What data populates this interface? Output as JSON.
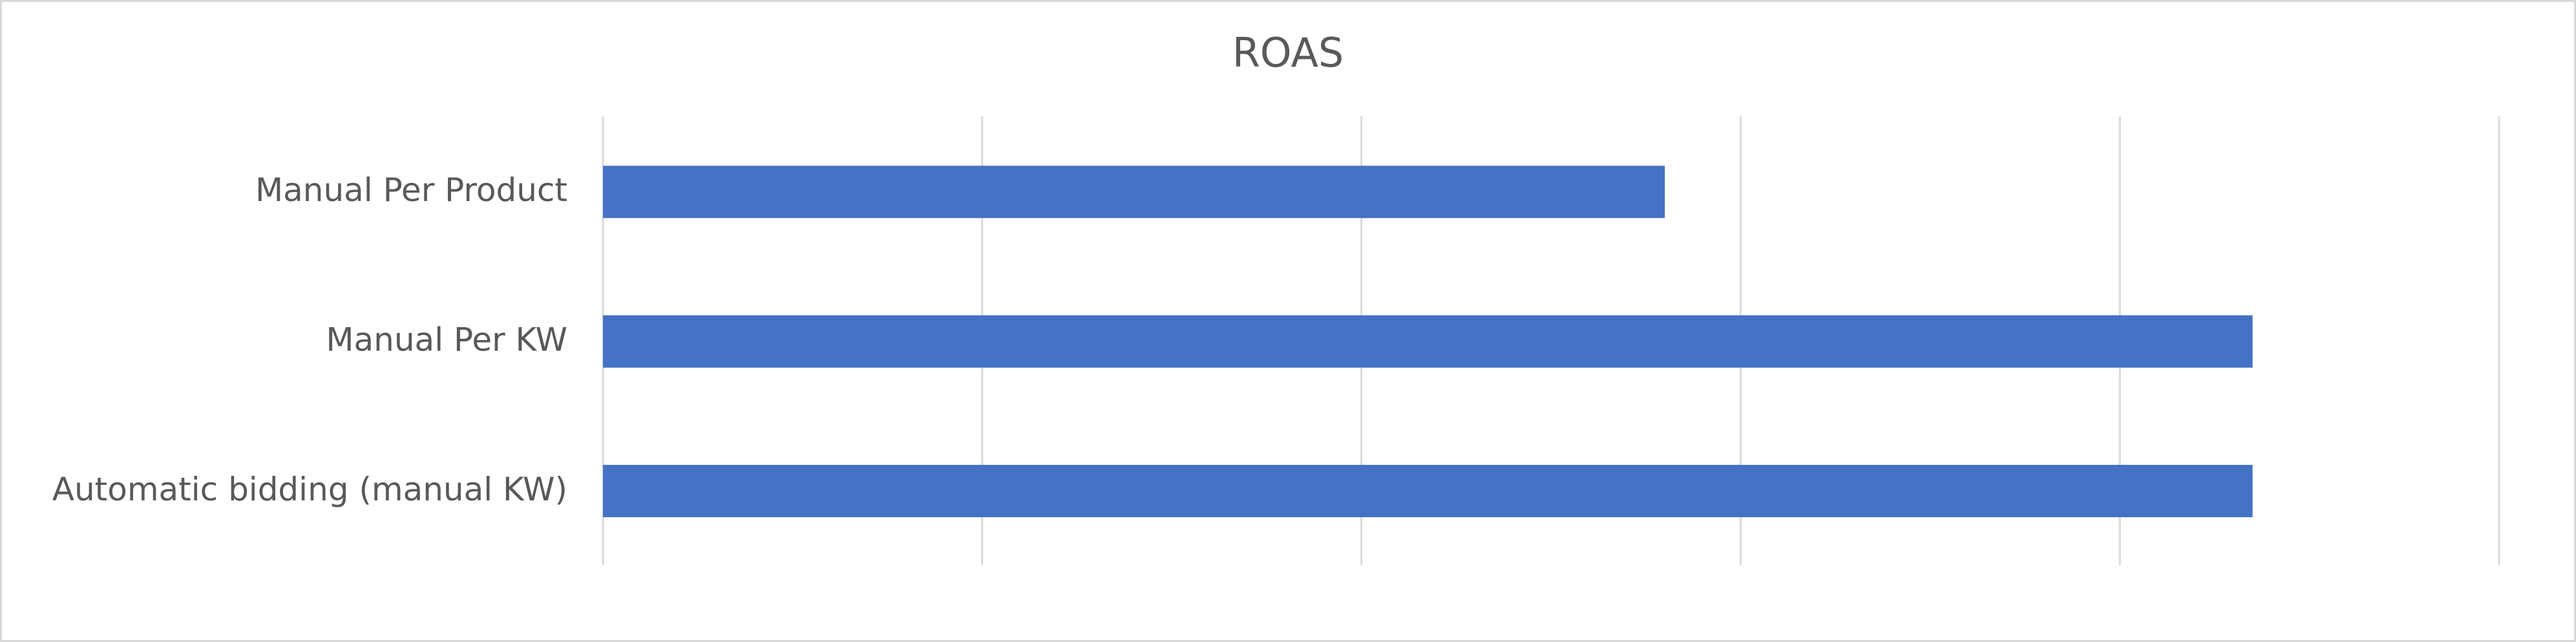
{
  "chart_data": {
    "type": "hbar",
    "title": "ROAS",
    "categories": [
      "Manual Per Product",
      "Manual Per KW",
      "Automatic bidding (manual KW)"
    ],
    "values": [
      2.8,
      4.35,
      4.35
    ],
    "color": "#4472c4",
    "xlim": [
      0,
      5
    ],
    "xticks": [
      0,
      1,
      2,
      3,
      4,
      5
    ],
    "grid": true
  }
}
